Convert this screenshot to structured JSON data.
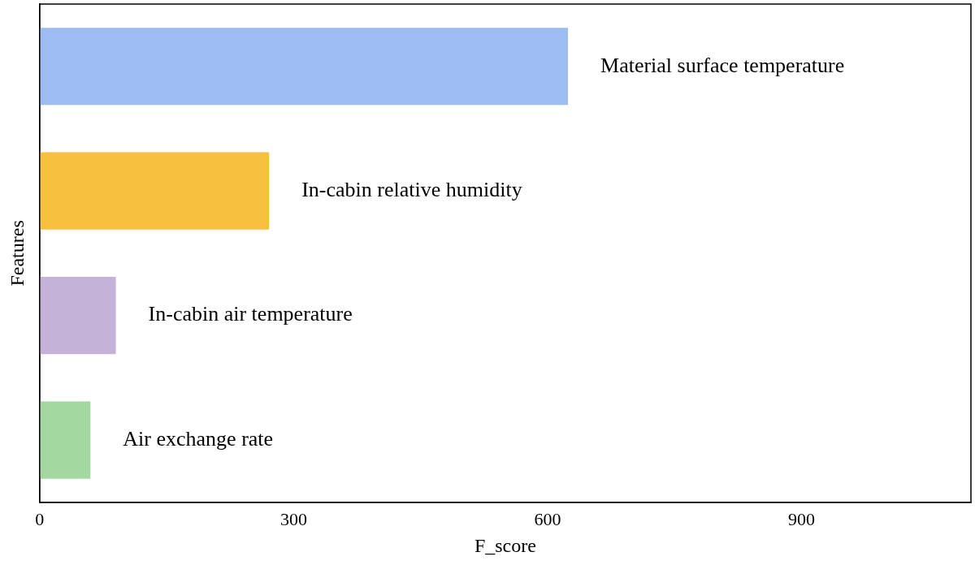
{
  "chart_data": {
    "type": "bar",
    "orientation": "horizontal",
    "x_label": "F_score",
    "y_label": "Features",
    "categories": [
      "Material surface temperature",
      "In-cabin relative humidity",
      "In-cabin air temperature",
      "Air exchange rate"
    ],
    "values": [
      624,
      271,
      90,
      60
    ],
    "colors": [
      "#9dbcf2",
      "#f7c140",
      "#c4b2d9",
      "#a3d8a1"
    ],
    "xlim": [
      0,
      1100
    ],
    "xticks": [
      0,
      300,
      600,
      900
    ],
    "grid": false,
    "tick_labels": "x"
  }
}
